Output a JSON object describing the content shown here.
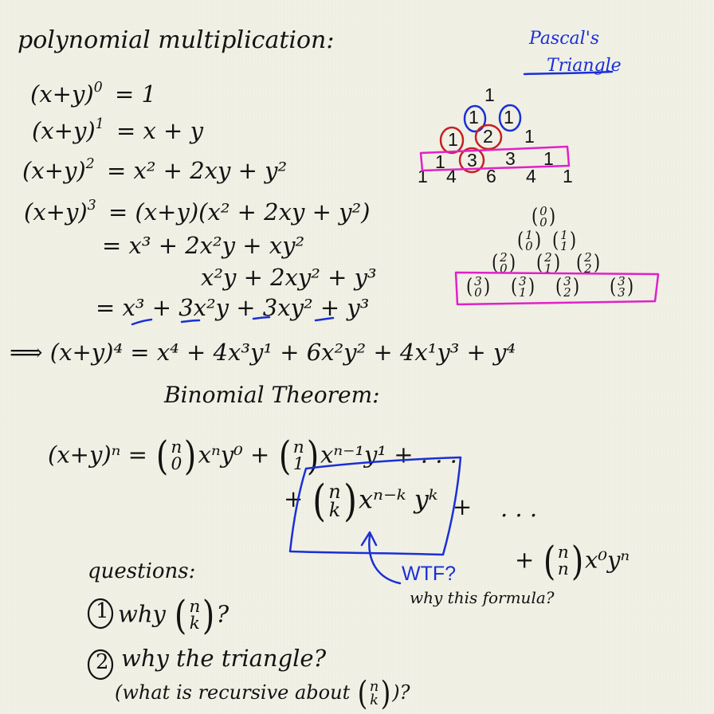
{
  "title": "polynomial multiplication:",
  "pascal_label": {
    "line1": "Pascal's",
    "line2": "Triangle"
  },
  "expansions": {
    "e0": {
      "lhs": "(x+y)",
      "exp": "0",
      "rhs": "= 1"
    },
    "e1": {
      "lhs": "(x+y)",
      "exp": "1",
      "rhs": "= x + y"
    },
    "e2": {
      "lhs": "(x+y)",
      "exp": "2",
      "rhs": "= x² + 2xy + y²"
    },
    "e3": {
      "lhs": "(x+y)",
      "exp": "3",
      "rhs": "= (x+y)(x² + 2xy + y²)"
    },
    "e3b": "= x³ + 2x²y + xy²",
    "e3c": "x²y + 2xy² + y³",
    "e3d": "= x³ + 3x²y + 3xy² + y³",
    "e4": "⟹ (x+y)⁴ = x⁴ + 4x³y¹ + 6x²y² + 4x¹y³ + y⁴"
  },
  "binomial_theorem": {
    "heading": "Binomial Theorem:",
    "line1_lhs": "(x+y)ⁿ =",
    "line1_t1_tail": "xⁿy⁰ +",
    "line1_t2_tail": "xⁿ⁻¹y¹ + . . .",
    "n": "n",
    "zero": "0",
    "one": "1",
    "k": "k",
    "boxed_term_tail": "xⁿ⁻ᵏ yᵏ",
    "plus": "+",
    "ellipsis": ". . .",
    "last_term_tail": "x⁰yⁿ",
    "annotation": "WTF?",
    "annotation_sub": "why this formula?"
  },
  "pascal_numeric": {
    "rows": [
      [
        "1"
      ],
      [
        "1",
        "1"
      ],
      [
        "1",
        "2",
        "1"
      ],
      [
        "1",
        "3",
        "3",
        "1"
      ],
      [
        "1",
        "4",
        "6",
        "4",
        "1"
      ]
    ]
  },
  "pascal_binomial": {
    "rows": [
      [
        [
          "0",
          "0"
        ]
      ],
      [
        [
          "1",
          "0"
        ],
        [
          "1",
          "1"
        ]
      ],
      [
        [
          "2",
          "0"
        ],
        [
          "2",
          "1"
        ],
        [
          "2",
          "2"
        ]
      ],
      [
        [
          "3",
          "0"
        ],
        [
          "3",
          "1"
        ],
        [
          "3",
          "2"
        ],
        [
          "3",
          "3"
        ]
      ]
    ]
  },
  "questions": {
    "heading": "questions:",
    "q1_num": "1",
    "q1_text": "why",
    "q1_tail": "?",
    "q2_num": "2",
    "q2_text": "why the triangle?",
    "q2_sub_pre": "(what is recursive about",
    "q2_sub_post": ")?"
  },
  "colors": {
    "ink": "#121212",
    "blue": "#1a2fd6",
    "red": "#c62020",
    "magenta": "#e021c8",
    "paper": "#f1f1e6"
  }
}
